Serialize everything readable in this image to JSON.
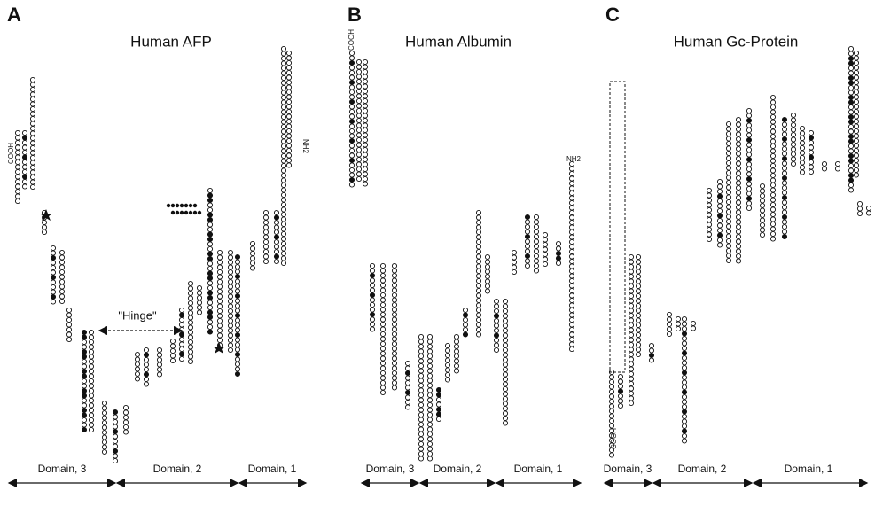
{
  "panels": [
    {
      "letter": "A",
      "title": "Human AFP",
      "termini": [
        "COOH",
        "NH2"
      ],
      "annotation": "\"Hinge\"",
      "domains": [
        "Domain, 3",
        "Domain, 2",
        "Domain, 1"
      ]
    },
    {
      "letter": "B",
      "title": "Human Albumin",
      "termini": [
        "COOH",
        "NH2"
      ],
      "domains": [
        "Domain, 3",
        "Domain, 2",
        "Domain, 1"
      ]
    },
    {
      "letter": "C",
      "title": "Human Gc-Protein",
      "termini": [
        "COOH"
      ],
      "domains": [
        "Domain, 3",
        "Domain, 2",
        "Domain, 1"
      ]
    }
  ]
}
